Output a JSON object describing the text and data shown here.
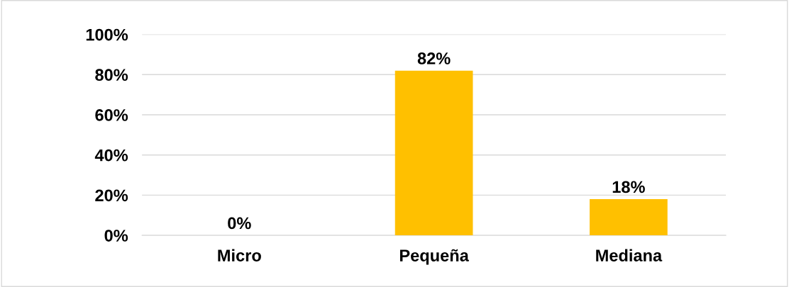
{
  "chart_data": {
    "type": "bar",
    "categories": [
      "Micro",
      "Pequeña",
      "Mediana"
    ],
    "values": [
      0,
      82,
      18
    ],
    "color": "#ffc000",
    "ylim": [
      0,
      100
    ],
    "yticks": [
      {
        "value": 0,
        "label": "0%"
      },
      {
        "value": 20,
        "label": "20%"
      },
      {
        "value": 40,
        "label": "40%"
      },
      {
        "value": 60,
        "label": "60%"
      },
      {
        "value": 80,
        "label": "80%"
      },
      {
        "value": 100,
        "label": "100%"
      }
    ],
    "value_labels": [
      "0%",
      "82%",
      "18%"
    ],
    "grid": "y",
    "legend": false
  }
}
